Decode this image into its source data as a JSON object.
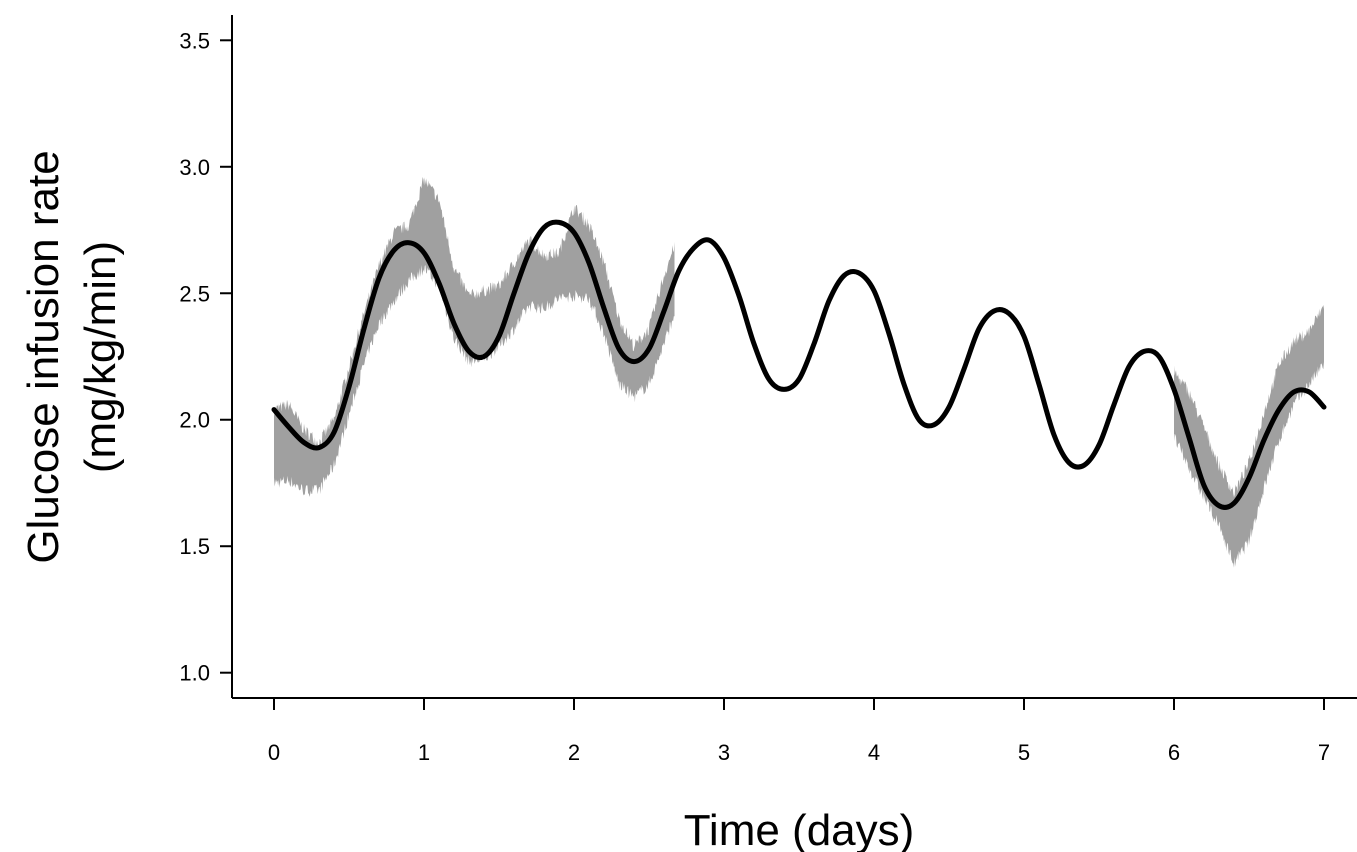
{
  "chart_data": {
    "type": "line",
    "title": "",
    "xlabel": "Time (days)",
    "ylabel_line1": "Glucose infusion rate",
    "ylabel_line2": "(mg/kg/min)",
    "xlim": [
      -0.28,
      7.22
    ],
    "ylim": [
      0.9,
      3.6
    ],
    "x_ticks": [
      0,
      1,
      2,
      3,
      4,
      5,
      6,
      7
    ],
    "x_tick_labels": [
      "0",
      "1",
      "2",
      "3",
      "4",
      "5",
      "6",
      "7"
    ],
    "y_ticks": [
      1.0,
      1.5,
      2.0,
      2.5,
      3.0,
      3.5
    ],
    "y_tick_labels": [
      "1.0",
      "1.5",
      "2.0",
      "2.5",
      "3.0",
      "3.5"
    ],
    "grid": false,
    "legend": "none",
    "colors": {
      "fit_line": "#000000",
      "observed_band": "#a0a0a0"
    },
    "series": [
      {
        "kind": "line",
        "x": [
          0.0,
          0.1,
          0.2,
          0.3,
          0.4,
          0.5,
          0.6,
          0.7,
          0.8,
          0.9,
          1.0,
          1.1,
          1.2,
          1.3,
          1.4,
          1.5,
          1.6,
          1.7,
          1.8,
          1.9,
          2.0,
          2.1,
          2.2,
          2.3,
          2.4,
          2.5,
          2.6,
          2.7,
          2.8,
          2.9,
          3.0,
          3.1,
          3.2,
          3.3,
          3.4,
          3.5,
          3.6,
          3.7,
          3.8,
          3.9,
          4.0,
          4.1,
          4.2,
          4.3,
          4.4,
          4.5,
          4.6,
          4.7,
          4.8,
          4.9,
          5.0,
          5.1,
          5.2,
          5.3,
          5.4,
          5.5,
          5.6,
          5.7,
          5.8,
          5.9,
          6.0,
          6.1,
          6.2,
          6.3,
          6.4,
          6.5,
          6.6,
          6.7,
          6.8,
          6.9,
          7.0
        ],
        "y": [
          2.04,
          1.97,
          1.91,
          1.89,
          1.95,
          2.13,
          2.36,
          2.56,
          2.67,
          2.7,
          2.66,
          2.54,
          2.38,
          2.27,
          2.25,
          2.33,
          2.5,
          2.66,
          2.76,
          2.78,
          2.74,
          2.62,
          2.44,
          2.28,
          2.23,
          2.28,
          2.43,
          2.59,
          2.68,
          2.71,
          2.64,
          2.49,
          2.3,
          2.16,
          2.12,
          2.16,
          2.3,
          2.47,
          2.57,
          2.58,
          2.51,
          2.34,
          2.14,
          2.0,
          1.98,
          2.05,
          2.2,
          2.36,
          2.43,
          2.42,
          2.33,
          2.14,
          1.94,
          1.83,
          1.82,
          1.9,
          2.06,
          2.21,
          2.27,
          2.25,
          2.12,
          1.93,
          1.74,
          1.66,
          1.67,
          1.77,
          1.92,
          2.04,
          2.11,
          2.11,
          2.05
        ]
      },
      {
        "kind": "band",
        "segments": [
          {
            "x": [
              0.0,
              0.1,
              0.2,
              0.3,
              0.4,
              0.5,
              0.6,
              0.7,
              0.8,
              0.9,
              1.0,
              1.1,
              1.2,
              1.3,
              1.4,
              1.5,
              1.6,
              1.7,
              1.8,
              1.9,
              2.0,
              2.1,
              2.2,
              2.3,
              2.4,
              2.5,
              2.6,
              2.67
            ],
            "lower": [
              1.75,
              1.76,
              1.72,
              1.72,
              1.82,
              2.02,
              2.22,
              2.38,
              2.47,
              2.55,
              2.6,
              2.53,
              2.32,
              2.23,
              2.24,
              2.29,
              2.36,
              2.45,
              2.44,
              2.48,
              2.49,
              2.48,
              2.34,
              2.14,
              2.09,
              2.14,
              2.3,
              2.42
            ],
            "upper": [
              2.04,
              2.06,
              1.96,
              1.91,
              2.0,
              2.21,
              2.42,
              2.61,
              2.74,
              2.77,
              2.95,
              2.87,
              2.6,
              2.49,
              2.51,
              2.53,
              2.62,
              2.71,
              2.65,
              2.66,
              2.84,
              2.77,
              2.62,
              2.4,
              2.29,
              2.36,
              2.57,
              2.69
            ]
          },
          {
            "x": [
              6.0,
              6.1,
              6.2,
              6.3,
              6.4,
              6.5,
              6.6,
              6.7,
              6.8,
              6.9,
              7.0
            ],
            "lower": [
              1.93,
              1.81,
              1.69,
              1.58,
              1.43,
              1.52,
              1.73,
              1.92,
              2.06,
              2.14,
              2.22
            ],
            "upper": [
              2.19,
              2.11,
              1.97,
              1.82,
              1.71,
              1.83,
              2.03,
              2.22,
              2.31,
              2.35,
              2.45
            ]
          }
        ]
      }
    ]
  }
}
